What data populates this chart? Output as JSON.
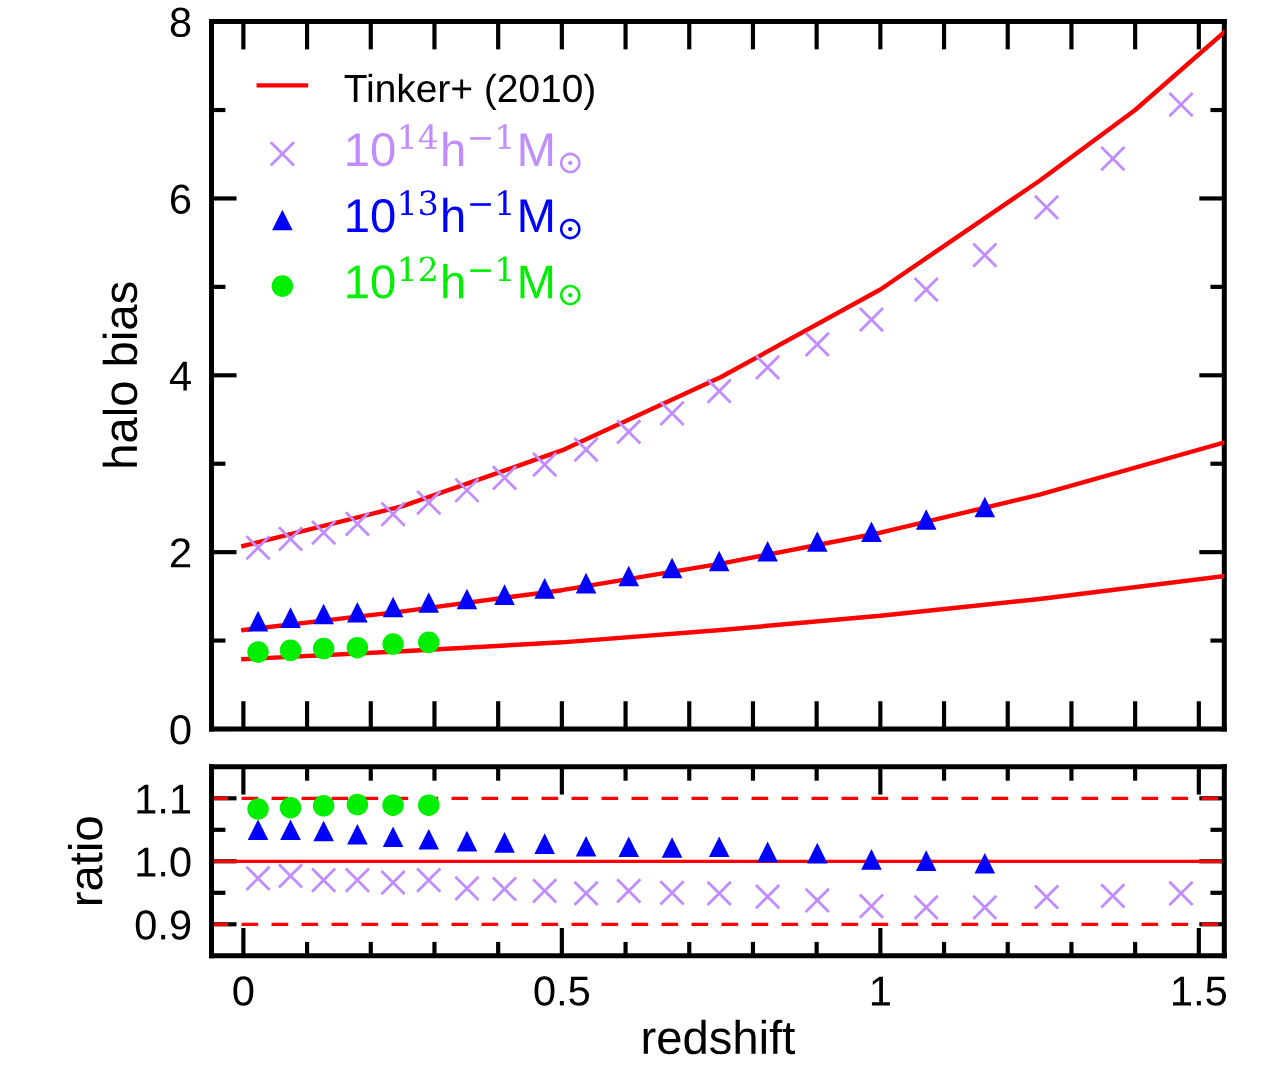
{
  "chart_data": [
    {
      "type": "scatter",
      "ylabel": "halo bias",
      "xlim": [
        -0.05,
        1.54
      ],
      "ylim": [
        0,
        8
      ],
      "xticks": [
        0,
        {
          "value": 0.1,
          "label": null
        },
        {
          "value": 0.2,
          "label": null
        },
        {
          "value": 0.3,
          "label": null
        },
        {
          "value": 0.4,
          "label": null
        },
        0.5,
        {
          "value": 0.6,
          "label": null
        },
        {
          "value": 0.7,
          "label": null
        },
        {
          "value": 0.8,
          "label": null
        },
        {
          "value": 0.9,
          "label": null
        },
        1,
        {
          "value": 1.1,
          "label": null
        },
        {
          "value": 1.2,
          "label": null
        },
        {
          "value": 1.3,
          "label": null
        },
        {
          "value": 1.4,
          "label": null
        },
        1.5
      ],
      "yticks": [
        0,
        {
          "value": 1,
          "label": null
        },
        2,
        {
          "value": 3,
          "label": null
        },
        4,
        {
          "value": 5,
          "label": null
        },
        6,
        {
          "value": 7,
          "label": null
        },
        8
      ],
      "tick_labels": "y",
      "legend": "top left",
      "grid": false,
      "series": [
        {
          "type": "line",
          "name": "Tinker+ (2010)",
          "color": "#ff0000",
          "x": [
            0,
            0.25,
            0.5,
            0.75,
            1.0,
            1.25,
            1.4,
            1.54
          ],
          "values": [
            2.07,
            2.52,
            3.15,
            3.98,
            4.97,
            6.2,
            7.0,
            7.88
          ]
        },
        {
          "type": "line",
          "color": "#ff0000",
          "x": [
            0,
            0.25,
            0.5,
            0.75,
            1.0,
            1.25,
            1.54
          ],
          "values": [
            1.12,
            1.33,
            1.57,
            1.87,
            2.22,
            2.65,
            3.24
          ]
        },
        {
          "type": "line",
          "color": "#ff0000",
          "x": [
            0,
            0.25,
            0.5,
            0.75,
            1.0,
            1.25,
            1.54
          ],
          "values": [
            0.79,
            0.88,
            0.98,
            1.12,
            1.28,
            1.47,
            1.73
          ]
        },
        {
          "marker": "cross",
          "name": "10$^{14}$h$^{−1}$M$_{⊙}$",
          "color": "#c08cff",
          "x": [
            0.023,
            0.074,
            0.126,
            0.179,
            0.235,
            0.291,
            0.351,
            0.41,
            0.473,
            0.538,
            0.605,
            0.673,
            0.747,
            0.823,
            0.901,
            0.986,
            1.072,
            1.164,
            1.261,
            1.365,
            1.472
          ],
          "values": [
            2.05,
            2.15,
            2.22,
            2.32,
            2.43,
            2.56,
            2.7,
            2.84,
            2.99,
            3.16,
            3.36,
            3.57,
            3.82,
            4.09,
            4.35,
            4.63,
            4.97,
            5.36,
            5.9,
            6.45,
            7.06
          ]
        },
        {
          "marker": "triangle",
          "name": "10$^{13}$h$^{−1}$M$_{⊙}$",
          "color": "#0000ff",
          "x": [
            0.023,
            0.074,
            0.126,
            0.179,
            0.235,
            0.291,
            0.351,
            0.41,
            0.473,
            0.538,
            0.605,
            0.673,
            0.747,
            0.823,
            0.901,
            0.986,
            1.072,
            1.164
          ],
          "values": [
            1.22,
            1.26,
            1.3,
            1.32,
            1.38,
            1.43,
            1.47,
            1.52,
            1.59,
            1.65,
            1.73,
            1.82,
            1.9,
            2.01,
            2.12,
            2.23,
            2.37,
            2.51
          ]
        },
        {
          "marker": "circle",
          "name": "10$^{12}$h$^{−1}$M$_{⊙}$",
          "color": "#00ee00",
          "x": [
            0.023,
            0.074,
            0.126,
            0.179,
            0.235,
            0.291
          ],
          "values": [
            0.87,
            0.89,
            0.91,
            0.92,
            0.96,
            0.98
          ]
        }
      ]
    },
    {
      "type": "scatter",
      "xlabel": "redshift",
      "ylabel": "ratio",
      "xlim": [
        -0.05,
        1.54
      ],
      "ylim": [
        0.85,
        1.15
      ],
      "xticks": [
        0,
        {
          "value": 0.1,
          "label": null
        },
        {
          "value": 0.2,
          "label": null
        },
        {
          "value": 0.3,
          "label": null
        },
        {
          "value": 0.4,
          "label": null
        },
        0.5,
        {
          "value": 0.6,
          "label": null
        },
        {
          "value": 0.7,
          "label": null
        },
        {
          "value": 0.8,
          "label": null
        },
        {
          "value": 0.9,
          "label": null
        },
        1,
        {
          "value": 1.1,
          "label": null
        },
        {
          "value": 1.2,
          "label": null
        },
        {
          "value": 1.3,
          "label": null
        },
        {
          "value": 1.4,
          "label": null
        },
        1.5
      ],
      "yticks": [
        0.9,
        {
          "value": 0.95,
          "label": null
        },
        {
          "value": 1.0,
          "label": "1.0"
        },
        {
          "value": 1.05,
          "label": null
        },
        1.1
      ],
      "grid": false,
      "ref_lines": [
        {
          "axis": "y",
          "value": 1.0,
          "color": "#ff0000",
          "line_style": "solid"
        },
        {
          "axis": "y",
          "value": 0.9,
          "color": "#ff0000",
          "line_style": "dashed"
        },
        {
          "axis": "y",
          "value": 1.1,
          "color": "#ff0000",
          "line_style": "dashed"
        }
      ],
      "series": [
        {
          "marker": "cross",
          "color": "#c08cff",
          "x": [
            0.023,
            0.074,
            0.126,
            0.179,
            0.235,
            0.291,
            0.351,
            0.41,
            0.473,
            0.538,
            0.605,
            0.673,
            0.747,
            0.823,
            0.901,
            0.986,
            1.072,
            1.164,
            1.261,
            1.365,
            1.472
          ],
          "values": [
            0.973,
            0.977,
            0.97,
            0.97,
            0.966,
            0.97,
            0.957,
            0.956,
            0.953,
            0.949,
            0.953,
            0.95,
            0.949,
            0.944,
            0.938,
            0.929,
            0.927,
            0.927,
            0.943,
            0.945,
            0.949
          ]
        },
        {
          "marker": "triangle",
          "color": "#0000ff",
          "x": [
            0.023,
            0.074,
            0.126,
            0.179,
            0.235,
            0.291,
            0.351,
            0.41,
            0.473,
            0.538,
            0.605,
            0.673,
            0.747,
            0.823,
            0.901,
            0.986,
            1.072,
            1.164
          ],
          "values": [
            1.05,
            1.05,
            1.048,
            1.043,
            1.039,
            1.035,
            1.032,
            1.03,
            1.028,
            1.024,
            1.023,
            1.022,
            1.023,
            1.015,
            1.013,
            1.003,
            1.001,
            0.997
          ]
        },
        {
          "marker": "circle",
          "color": "#00ee00",
          "x": [
            0.023,
            0.074,
            0.126,
            0.179,
            0.235,
            0.291
          ],
          "values": [
            1.083,
            1.085,
            1.088,
            1.09,
            1.089,
            1.089
          ]
        }
      ]
    }
  ]
}
